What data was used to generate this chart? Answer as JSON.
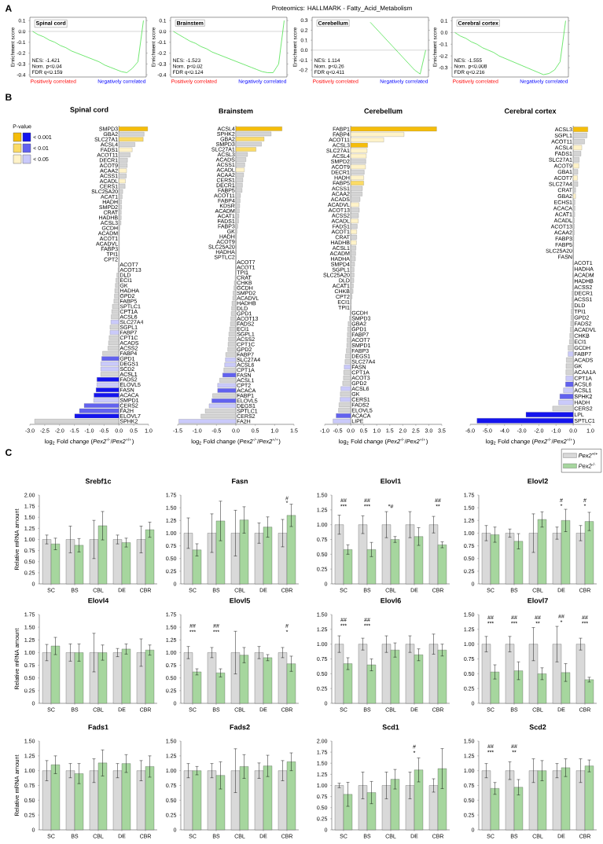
{
  "chart_data": [
    {
      "type": "line",
      "title": "Spinal cord",
      "ylabel": "Enrichment score",
      "categories": [
        null,
        null,
        null,
        null,
        null,
        null,
        null,
        null,
        null,
        null,
        null,
        null,
        null,
        null,
        null,
        null,
        null,
        null,
        null,
        null,
        null
      ],
      "values": [
        0,
        -0.03,
        -0.05,
        -0.08,
        -0.1,
        -0.13,
        -0.15,
        -0.18,
        -0.2,
        -0.22,
        -0.24,
        -0.26,
        -0.28,
        -0.31,
        -0.33,
        -0.35,
        -0.37,
        -0.38,
        -0.34,
        -0.28,
        0.1
      ],
      "color": "#33dd33",
      "ylim": [
        -0.42,
        0.13
      ],
      "yticks": [
        -0.4,
        -0.3,
        -0.2,
        -0.1,
        {
          "value": 0,
          "label": "0.0"
        },
        0.1
      ],
      "tick_labels": "y",
      "ref_lines": [
        {
          "axis": "y",
          "value": 0,
          "color": "#999999"
        }
      ],
      "annotations": [
        "A",
        "Proteomics: HALLMARK - Fatty_Acid_Metabolism",
        "NES: -1.421",
        "Nom. p<0.04",
        "FDR q<0.159",
        "Positively correlated",
        "Negatively correlated"
      ]
    },
    {
      "type": "line",
      "title": "Brainstem",
      "ylabel": "Enrichment score",
      "categories": [
        null,
        null,
        null,
        null,
        null,
        null,
        null,
        null,
        null,
        null,
        null,
        null,
        null,
        null,
        null,
        null,
        null,
        null,
        null,
        null,
        null
      ],
      "values": [
        0,
        -0.03,
        -0.06,
        -0.09,
        -0.11,
        -0.14,
        -0.16,
        -0.19,
        -0.21,
        -0.23,
        -0.25,
        -0.27,
        -0.29,
        -0.31,
        -0.33,
        -0.35,
        -0.37,
        -0.38,
        -0.38,
        -0.3,
        0.1
      ],
      "color": "#33dd33",
      "ylim": [
        -0.42,
        0.13
      ],
      "yticks": [
        -0.4,
        -0.3,
        -0.2,
        -0.1,
        {
          "value": 0,
          "label": "0.0"
        },
        0.1
      ],
      "tick_labels": "y",
      "ref_lines": [
        {
          "axis": "y",
          "value": 0,
          "color": "#999999"
        }
      ],
      "annotations": [
        "NES: -1.523",
        "Nom. p<0.02",
        "FDR q<0.124",
        "Positively correlated",
        "Negatively correlated"
      ]
    },
    {
      "type": "line",
      "title": "Cerebellum",
      "ylabel": "Enrichment score",
      "categories": [
        null,
        null,
        null,
        null,
        null,
        null,
        null,
        null,
        null,
        null,
        null,
        null,
        null,
        null,
        null,
        null,
        null,
        null,
        null,
        null,
        null
      ],
      "values": [
        null,
        null,
        null,
        null,
        null,
        null,
        null,
        null,
        null,
        null,
        0.28,
        0.22,
        0.16,
        0.1,
        0.04,
        -0.02,
        -0.08,
        -0.14,
        -0.2,
        -0.24,
        0.0
      ],
      "color": "#33dd33",
      "ylim": [
        -0.27,
        0.33
      ],
      "yticks": [
        -0.2,
        -0.1,
        {
          "value": 0,
          "label": "0.0"
        },
        0.1,
        0.2,
        0.3
      ],
      "tick_labels": "y",
      "ref_lines": [
        {
          "axis": "y",
          "value": 0,
          "color": "#999999"
        }
      ],
      "annotations": [
        "NES: 1.114",
        "Nom. p<0.26",
        "FDR q<0.411",
        "Positively correlated",
        "Negatively correlated"
      ]
    },
    {
      "type": "line",
      "title": "Cerebral cortex",
      "ylabel": "Enrichment score",
      "categories": [
        null,
        null,
        null,
        null,
        null,
        null,
        null,
        null,
        null,
        null,
        null,
        null,
        null,
        null,
        null,
        null,
        null,
        null,
        null,
        null,
        null
      ],
      "values": [
        0,
        -0.03,
        -0.05,
        -0.08,
        -0.1,
        -0.13,
        -0.15,
        -0.17,
        -0.2,
        -0.22,
        -0.24,
        -0.26,
        -0.28,
        -0.3,
        -0.32,
        -0.34,
        -0.36,
        -0.35,
        -0.32,
        -0.25,
        0.1
      ],
      "color": "#33dd33",
      "ylim": [
        -0.38,
        0.13
      ],
      "yticks": [
        -0.3,
        -0.2,
        -0.1,
        {
          "value": 0,
          "label": "0.0"
        },
        0.1
      ],
      "tick_labels": "y",
      "ref_lines": [
        {
          "axis": "y",
          "value": 0,
          "color": "#999999"
        }
      ],
      "annotations": [
        "NES: -1.555",
        "Nom. p<0.008",
        "FDR q<0.216",
        "Positively correlated",
        "Negatively correlated"
      ]
    },
    {
      "type": "bar",
      "orientation": "horizontal",
      "title": "Spinal cord",
      "xlabel": "log$_{2}$ Fold change (*Pex2*$^{-/-}$/*Pex2*$^{+/+}$)",
      "legend_title": "P-value",
      "annotations": [
        "B",
        "< 0.001",
        "< 0.01",
        "< 0.05"
      ],
      "categories": [
        "SMPD3",
        "GBA2",
        "SLC27A1",
        "ACSL4",
        "FADS1",
        "ACOT11",
        "DECR1",
        "ACOT9",
        "ACAA2",
        "ACSS1",
        "ACADL",
        "CERS1",
        "SLC25A20",
        "ACAT1",
        "HADH",
        "SMPD2",
        "CRAT",
        "HADHB",
        "ACSL3",
        "GCDH",
        "ACADM",
        "ACOT1",
        "ACADVL",
        "FABP3",
        "TPI1",
        "CPT2",
        "ACOT7",
        "ACOT13",
        "DLD",
        "ECI1",
        "GK",
        "HADHA",
        "GPD2",
        "FABP5",
        "SPTLC1",
        "CPT1A",
        "ACSL6",
        "SLC27A4",
        "SGPL1",
        "FABP7",
        "CPT1C",
        "ACADS",
        "ACSS2",
        "FABP4",
        "GPD1",
        "DEGS1",
        "SCD2",
        "ACSL1",
        "FADS2",
        "ELOVL5",
        "FASN",
        "ACACA",
        "SMPD1",
        "CERS2",
        "FA2H",
        "ELOVL7",
        "SPHK2"
      ],
      "values": [
        0.97,
        0.85,
        0.82,
        0.54,
        0.45,
        0.38,
        0.29,
        0.28,
        0.26,
        0.25,
        0.22,
        0.21,
        0.13,
        0.11,
        0.09,
        0.09,
        0.08,
        0.08,
        0.07,
        0.03,
        0.02,
        0.02,
        0.02,
        0.02,
        0.01,
        0.01,
        -0.01,
        -0.03,
        -0.07,
        -0.1,
        -0.12,
        -0.14,
        -0.15,
        -0.17,
        -0.22,
        -0.24,
        -0.26,
        -0.27,
        -0.3,
        -0.3,
        -0.33,
        -0.35,
        -0.37,
        -0.55,
        -0.58,
        -0.61,
        -0.61,
        -0.61,
        -0.74,
        -0.74,
        -0.77,
        -0.84,
        -0.85,
        -1.17,
        -1.33,
        -1.49,
        -2.84
      ],
      "colors": [
        "#f5bd0a",
        "#d4d4d4",
        "#fbdb66",
        "#d4d4d4",
        "#fff3c9",
        "#d4d4d4",
        "#d4d4d4",
        "#d4d4d4",
        "#fff3c9",
        "#d4d4d4",
        "#fff3c9",
        "#d4d4d4",
        "#d4d4d4",
        "#d4d4d4",
        "#d4d4d4",
        "#d4d4d4",
        "#d4d4d4",
        "#d4d4d4",
        "#d4d4d4",
        "#d4d4d4",
        "#d4d4d4",
        "#d4d4d4",
        "#d4d4d4",
        "#d4d4d4",
        "#d4d4d4",
        "#d4d4d4",
        "#d4d4d4",
        "#d4d4d4",
        "#d4d4d4",
        "#d4d4d4",
        "#d4d4d4",
        "#d4d4d4",
        "#d4d4d4",
        "#d4d4d4",
        "#d4d4d4",
        "#d4d4d4",
        "#d4d4d4",
        "#cacafa",
        "#d4d4d4",
        "#cacafa",
        "#d4d4d4",
        "#d4d4d4",
        "#d4d4d4",
        "#d4d4d4",
        "#6262ef",
        "#cacafa",
        "#cacafa",
        "#d4d4d4",
        "#1414ee",
        "#cacafa",
        "#1414ee",
        "#1414ee",
        "#cacafa",
        "#6262ef",
        "#6262ef",
        "#1414ee",
        "#d4d4d4"
      ],
      "xlim": [
        -3,
        1
      ],
      "xticks": [
        {
          "value": -3,
          "label": "-3.0"
        },
        -2.5,
        {
          "value": -2,
          "label": "-2.0"
        },
        -1.5,
        {
          "value": -1,
          "label": "-1.0"
        },
        -0.5,
        {
          "value": 0,
          "label": "0.0"
        },
        0.5,
        {
          "value": 1,
          "label": "1.0"
        }
      ]
    },
    {
      "type": "bar",
      "orientation": "horizontal",
      "title": "Brainstem",
      "xlabel": "log$_{2}$ Fold change (*Pex2*$^{-/-}$/*Pex2*$^{+/+}$)",
      "categories": [
        "ACSL4",
        "SPHK2",
        "GBA2",
        "SMPD3",
        "SLC27A1",
        "ACSL3",
        "ACADS",
        "ACSS1",
        "ACADL",
        "ACAA2",
        "CERS1",
        "DECR1",
        "FABP5",
        "ACOT11",
        "FABP4",
        "KDSR",
        "ACADM",
        "ACAT1",
        "FADS1",
        "FABP3",
        "GK",
        "HADH",
        "ACOT9",
        "SLC25A20",
        "HADHA",
        "SPTLC2",
        "ACOT7",
        "ACOT1",
        "TPI1",
        "CRAT",
        "CHKB",
        "GCDH",
        "SMPD2",
        "ACADVL",
        "HADHB",
        "DLD",
        "GPD1",
        "ACOT13",
        "FADS2",
        "ECI1",
        "SGPL1",
        "ACSS2",
        "CPT1C",
        "GPD2",
        "FABP7",
        "SLC27A4",
        "ACSL6",
        "CPT1A",
        "FASN",
        "ACSL1",
        "CPT2",
        "ACACA",
        "FABP1",
        "ELOVL5",
        "DEGS1",
        "SPTLC1",
        "CERS2",
        "FA2H"
      ],
      "values": [
        1.19,
        0.91,
        0.73,
        0.66,
        0.52,
        0.3,
        0.26,
        0.23,
        0.22,
        0.2,
        0.18,
        0.17,
        0.16,
        0.12,
        0.11,
        0.1,
        0.09,
        0.08,
        0.07,
        0.05,
        0.03,
        0.02,
        0.01,
        0.01,
        0.01,
        0.01,
        -0.01,
        -0.01,
        -0.01,
        -0.02,
        -0.04,
        -0.05,
        -0.07,
        -0.08,
        -0.1,
        -0.11,
        -0.12,
        -0.13,
        -0.14,
        -0.16,
        -0.18,
        -0.19,
        -0.2,
        -0.21,
        -0.26,
        -0.27,
        -0.29,
        -0.31,
        -0.34,
        -0.42,
        -0.47,
        -0.47,
        -0.6,
        -0.62,
        -0.69,
        -0.79,
        -0.9,
        -1.47
      ],
      "colors": [
        "#f5bd0a",
        "#d4d4d4",
        "#fbdb66",
        "#d4d4d4",
        "#fbdb66",
        "#d4d4d4",
        "#d4d4d4",
        "#d4d4d4",
        "#fff3c9",
        "#d4d4d4",
        "#d4d4d4",
        "#d4d4d4",
        "#d4d4d4",
        "#d4d4d4",
        "#d4d4d4",
        "#d4d4d4",
        "#d4d4d4",
        "#d4d4d4",
        "#d4d4d4",
        "#d4d4d4",
        "#d4d4d4",
        "#d4d4d4",
        "#d4d4d4",
        "#d4d4d4",
        "#d4d4d4",
        "#d4d4d4",
        "#d4d4d4",
        "#d4d4d4",
        "#d4d4d4",
        "#d4d4d4",
        "#d4d4d4",
        "#d4d4d4",
        "#d4d4d4",
        "#d4d4d4",
        "#d4d4d4",
        "#d4d4d4",
        "#d4d4d4",
        "#d4d4d4",
        "#d4d4d4",
        "#d4d4d4",
        "#d4d4d4",
        "#d4d4d4",
        "#d4d4d4",
        "#d4d4d4",
        "#d4d4d4",
        "#cacafa",
        "#cacafa",
        "#d4d4d4",
        "#6262ef",
        "#d4d4d4",
        "#cacafa",
        "#6262ef",
        "#d4d4d4",
        "#6262ef",
        "#cacafa",
        "#d4d4d4",
        "#d4d4d4",
        "#cacafa"
      ],
      "xlim": [
        -1.5,
        1.5
      ],
      "xticks": [
        -1.5,
        {
          "value": -1,
          "label": "-1.0"
        },
        -0.5,
        {
          "value": 0,
          "label": "0.0"
        },
        0.5,
        {
          "value": 1,
          "label": "1.0"
        },
        1.5
      ]
    },
    {
      "type": "bar",
      "orientation": "horizontal",
      "title": "Cerebellum",
      "xlabel": "log$_{2}$ Fold change (*Pex2*$^{-/-}$/*Pex2*$^{+/+}$)",
      "categories": [
        "FABP1",
        "FABP4",
        "ACOT11",
        "ACSL3",
        "SLC27A1",
        "ACSL4",
        "SMPD2",
        "ACOT9",
        "DECR1",
        "HADH",
        "FABP5",
        "ACSS1",
        "ACAA2",
        "ACADS",
        "ACADVL",
        "ACOT13",
        "ACSS2",
        "ACADL",
        "FADS1",
        "ACOT1",
        "CRAT",
        "HADHB",
        "ACSL1",
        "ACADM",
        "HADHA",
        "SMPD4",
        "SGPL1",
        "SLC25A20",
        "DLD",
        "ACAT1",
        "CHKB",
        "CPT2",
        "ECI1",
        "TPI1",
        "GCDH",
        "SMPD3",
        "GBA2",
        "GPD1",
        "FABP7",
        "ACOT7",
        "SMPD1",
        "FABP3",
        "DEGS1",
        "SLC27A4",
        "FASN",
        "CPT1A",
        "ACOT3",
        "GPD2",
        "ACSL6",
        "GK",
        "CERS1",
        "FADS2",
        "ELOVL5",
        "ACACA",
        "LIPE"
      ],
      "values": [
        3.3,
        2.05,
        1.27,
        0.65,
        0.63,
        0.6,
        0.58,
        0.57,
        0.52,
        0.5,
        0.5,
        0.45,
        0.44,
        0.36,
        0.32,
        0.33,
        0.3,
        0.29,
        0.25,
        0.23,
        0.23,
        0.22,
        0.2,
        0.19,
        0.18,
        0.15,
        0.13,
        0.13,
        0.12,
        0.1,
        0.09,
        0.05,
        0.02,
        0.01,
        -0.02,
        -0.05,
        -0.1,
        -0.12,
        -0.13,
        -0.14,
        -0.15,
        -0.17,
        -0.2,
        -0.22,
        -0.25,
        -0.27,
        -0.28,
        -0.31,
        -0.38,
        -0.4,
        -0.41,
        -0.45,
        -0.47,
        -0.56,
        -0.68
      ],
      "colors": [
        "#f5bd0a",
        "#fff3c9",
        "#fff3c9",
        "#f5bd0a",
        "#fff3c9",
        "#fff3c9",
        "#d4d4d4",
        "#fff3c9",
        "#d4d4d4",
        "#fff3c9",
        "#fbdb66",
        "#d4d4d4",
        "#d4d4d4",
        "#d4d4d4",
        "#fff3c9",
        "#d4d4d4",
        "#d4d4d4",
        "#fff3c9",
        "#d4d4d4",
        "#fff3c9",
        "#d4d4d4",
        "#fff3c9",
        "#d4d4d4",
        "#d4d4d4",
        "#d4d4d4",
        "#d4d4d4",
        "#d4d4d4",
        "#d4d4d4",
        "#d4d4d4",
        "#d4d4d4",
        "#d4d4d4",
        "#d4d4d4",
        "#d4d4d4",
        "#d4d4d4",
        "#d4d4d4",
        "#d4d4d4",
        "#d4d4d4",
        "#d4d4d4",
        "#d4d4d4",
        "#d4d4d4",
        "#d4d4d4",
        "#d4d4d4",
        "#d4d4d4",
        "#d4d4d4",
        "#cacafa",
        "#d4d4d4",
        "#d4d4d4",
        "#d4d4d4",
        "#cacafa",
        "#d4d4d4",
        "#cacafa",
        "#d4d4d4",
        "#d4d4d4",
        "#6262ef",
        "#cacafa"
      ],
      "xlim": [
        -1,
        3.5
      ],
      "xticks": [
        {
          "value": -1,
          "label": "-1.0"
        },
        -0.5,
        {
          "value": 0,
          "label": "0.0"
        },
        0.5,
        {
          "value": 1,
          "label": "1.0"
        },
        1.5,
        {
          "value": 2,
          "label": "2.0"
        },
        2.5,
        {
          "value": 3,
          "label": "3.0"
        },
        3.5
      ]
    },
    {
      "type": "bar",
      "orientation": "horizontal",
      "title": "Cerebral cortex",
      "xlabel": "log$_{2}$ Fold change (*Pex2*$^{-/-}$/*Pex2*$^{+/+}$)",
      "categories": [
        "ACSL3",
        "SGPL1",
        "ACOT11",
        "ACSL4",
        "FADS1",
        "SLC27A1",
        "ACOT9",
        "GBA1",
        "ACOT7",
        "SLC27A4",
        "CRAT",
        "GBA2",
        "ECHS1",
        "ACACA",
        "ACAT1",
        "ACADL",
        "ACOT13",
        "ACAA2",
        "FABP3",
        "FABP5",
        "SLC25A20",
        "FASN",
        "ACOT1",
        "HADHA",
        "ACADM",
        "HADHB",
        "ACSS2",
        "DECR1",
        "ACSS1",
        "DLD",
        "TPI1",
        "GPD2",
        "FADS2",
        "ACADVL",
        "CHKB",
        "ECI1",
        "GCDH",
        "FABP7",
        "ACADS",
        "GK",
        "ACAA1A",
        "CPT1A",
        "ACSL6",
        "ACSL1",
        "SPHK2",
        "HADH",
        "CERS2",
        "LPL",
        "SPTLC1"
      ],
      "values": [
        0.85,
        0.8,
        0.66,
        0.5,
        0.45,
        0.35,
        0.33,
        0.27,
        0.25,
        0.27,
        0.14,
        0.14,
        0.1,
        0.1,
        0.09,
        0.07,
        0.07,
        0.06,
        0.04,
        0.03,
        0.02,
        0.01,
        -0.01,
        -0.02,
        -0.03,
        -0.04,
        -0.05,
        -0.07,
        -0.08,
        -0.1,
        -0.12,
        -0.13,
        -0.15,
        -0.17,
        -0.2,
        -0.22,
        -0.3,
        -0.3,
        -0.4,
        -0.42,
        -0.43,
        -0.43,
        -0.45,
        -0.57,
        -0.78,
        -0.85,
        -1.2,
        -2.75,
        -5.6
      ],
      "colors": [
        "#f5bd0a",
        "#d4d4d4",
        "#d4d4d4",
        "#fff3c9",
        "#d4d4d4",
        "#d4d4d4",
        "#fff3c9",
        "#d4d4d4",
        "#fff3c9",
        "#d4d4d4",
        "#d4d4d4",
        "#fff3c9",
        "#d4d4d4",
        "#d4d4d4",
        "#d4d4d4",
        "#d4d4d4",
        "#d4d4d4",
        "#d4d4d4",
        "#d4d4d4",
        "#d4d4d4",
        "#d4d4d4",
        "#d4d4d4",
        "#d4d4d4",
        "#d4d4d4",
        "#d4d4d4",
        "#d4d4d4",
        "#d4d4d4",
        "#d4d4d4",
        "#d4d4d4",
        "#d4d4d4",
        "#d4d4d4",
        "#d4d4d4",
        "#d4d4d4",
        "#d4d4d4",
        "#d4d4d4",
        "#d4d4d4",
        "#d4d4d4",
        "#cacafa",
        "#d4d4d4",
        "#d4d4d4",
        "#d4d4d4",
        "#cacafa",
        "#6262ef",
        "#cacafa",
        "#6262ef",
        "#cacafa",
        "#d4d4d4",
        "#1414ee",
        "#1414ee"
      ],
      "xlim": [
        -6,
        1
      ],
      "xticks": [
        {
          "value": -6,
          "label": "-6.0"
        },
        {
          "value": -5,
          "label": "-5.0"
        },
        {
          "value": -4,
          "label": "-4.0"
        },
        {
          "value": -3,
          "label": "-3.0"
        },
        {
          "value": -2,
          "label": "-2.0"
        },
        {
          "value": -1,
          "label": "-1.0"
        },
        {
          "value": 0,
          "label": "0.0"
        },
        {
          "value": 1,
          "label": "1.0"
        }
      ]
    },
    {
      "type": "bar",
      "title": "Srebf1c",
      "ylabel": "Relative mRNA amount",
      "categories": [
        "SC",
        "BS",
        "CBL",
        "DE",
        "CBR"
      ],
      "annotations": [
        "C"
      ],
      "series": [
        {
          "color": "#d9d9d9",
          "values": [
            1,
            1,
            1,
            1,
            1
          ],
          "errors": [
            0.1,
            0.3,
            0.43,
            0.1,
            0.3
          ]
        },
        {
          "color": "#a6d69e",
          "values": [
            0.9,
            0.87,
            1.31,
            0.93,
            1.22
          ],
          "errors": [
            0.13,
            0.15,
            0.32,
            0.1,
            0.17
          ]
        }
      ],
      "ylim": [
        0,
        2
      ],
      "yticks": [
        0,
        0.25,
        {
          "value": 0.5,
          "label": "0.50"
        },
        0.75,
        {
          "value": 1,
          "label": "1.00"
        },
        1.25,
        {
          "value": 1.5,
          "label": "1.50"
        },
        1.75,
        {
          "value": 2,
          "label": "2.00"
        }
      ]
    },
    {
      "type": "bar",
      "title": "Fasn",
      "categories": [
        "SC",
        "BS",
        "CBL",
        "DE",
        "CBR"
      ],
      "annotations": [
        "*",
        "#"
      ],
      "series": [
        {
          "color": "#d9d9d9",
          "values": [
            1,
            1,
            1,
            1,
            1
          ],
          "errors": [
            0.3,
            0.38,
            0.45,
            0.2,
            0.27
          ]
        },
        {
          "color": "#a6d69e",
          "values": [
            0.67,
            1.24,
            1.26,
            1.12,
            1.35
          ],
          "errors": [
            0.12,
            0.39,
            0.26,
            0.2,
            0.22
          ]
        }
      ],
      "ylim": [
        0,
        1.75
      ],
      "yticks": [
        0,
        0.25,
        {
          "value": 0.5,
          "label": "0.50"
        },
        0.75,
        {
          "value": 1,
          "label": "1.00"
        },
        1.25,
        {
          "value": 1.5,
          "label": "1.50"
        },
        1.75
      ]
    },
    {
      "type": "bar",
      "title": "Elovl1",
      "categories": [
        "SC",
        "BS",
        "CBL",
        "DE",
        "CBR"
      ],
      "annotations": [
        "***",
        "##",
        "***",
        "##",
        "*#",
        "**",
        "##"
      ],
      "series": [
        {
          "color": "#d9d9d9",
          "values": [
            1,
            1,
            1,
            1,
            1
          ],
          "errors": [
            0.16,
            0.15,
            0.22,
            0.22,
            0.14
          ]
        },
        {
          "color": "#a6d69e",
          "values": [
            0.58,
            0.58,
            0.75,
            0.8,
            0.66
          ],
          "errors": [
            0.08,
            0.12,
            0.05,
            0.15,
            0.05
          ]
        }
      ],
      "ylim": [
        0,
        1.5
      ],
      "yticks": [
        0,
        0.25,
        {
          "value": 0.5,
          "label": "0.50"
        },
        0.75,
        {
          "value": 1,
          "label": "1.00"
        },
        1.25,
        {
          "value": 1.5,
          "label": "1.50"
        }
      ]
    },
    {
      "type": "bar",
      "title": "Elovl2",
      "categories": [
        "SC",
        "BS",
        "CBL",
        "DE",
        "CBR"
      ],
      "legend": "top right",
      "annotations": [
        "*",
        "#",
        "*",
        "#"
      ],
      "series": [
        {
          "name": "*Pex2*$^{+/+}$",
          "color": "#d9d9d9",
          "values": [
            1,
            1,
            1,
            1,
            1
          ],
          "errors": [
            0.15,
            0.08,
            0.38,
            0.12,
            0.15
          ]
        },
        {
          "name": "*Pex2*$^{-/-}$",
          "color": "#a6d69e",
          "values": [
            0.97,
            0.84,
            1.27,
            1.25,
            1.23
          ],
          "errors": [
            0.15,
            0.15,
            0.15,
            0.22,
            0.18
          ]
        }
      ],
      "ylim": [
        0,
        1.75
      ],
      "yticks": [
        0,
        0.25,
        {
          "value": 0.5,
          "label": "0.50"
        },
        0.75,
        {
          "value": 1,
          "label": "1.00"
        },
        1.25,
        {
          "value": 1.5,
          "label": "1.50"
        },
        1.75
      ]
    },
    {
      "type": "bar",
      "title": "Elovl4",
      "ylabel": "Relative mRNA amount",
      "categories": [
        "SC",
        "BS",
        "CBL",
        "DE",
        "CBR"
      ],
      "series": [
        {
          "color": "#d9d9d9",
          "values": [
            1,
            1,
            1,
            1,
            1
          ],
          "errors": [
            0.16,
            0.17,
            0.38,
            0.08,
            0.27
          ]
        },
        {
          "color": "#a6d69e",
          "values": [
            1.13,
            1.0,
            1.0,
            1.07,
            1.05
          ],
          "errors": [
            0.17,
            0.17,
            0.15,
            0.1,
            0.1
          ]
        }
      ],
      "ylim": [
        0,
        1.75
      ],
      "yticks": [
        0,
        0.25,
        {
          "value": 0.5,
          "label": "0.50"
        },
        0.75,
        {
          "value": 1,
          "label": "1.00"
        },
        1.25,
        {
          "value": 1.5,
          "label": "1.50"
        },
        1.75
      ]
    },
    {
      "type": "bar",
      "title": "Elovl5",
      "categories": [
        "SC",
        "BS",
        "CBL",
        "DE",
        "CBR"
      ],
      "annotations": [
        "***",
        "##",
        "***",
        "##",
        "*",
        "#"
      ],
      "series": [
        {
          "color": "#d9d9d9",
          "values": [
            1,
            1,
            1,
            1,
            1
          ],
          "errors": [
            0.12,
            0.1,
            0.42,
            0.12,
            0.1
          ]
        },
        {
          "color": "#a6d69e",
          "values": [
            0.62,
            0.6,
            0.95,
            0.9,
            0.78
          ],
          "errors": [
            0.06,
            0.08,
            0.15,
            0.06,
            0.15
          ]
        }
      ],
      "ylim": [
        0,
        1.75
      ],
      "yticks": [
        0,
        0.25,
        {
          "value": 0.5,
          "label": "0.50"
        },
        0.75,
        {
          "value": 1,
          "label": "1.00"
        },
        1.25,
        {
          "value": 1.5,
          "label": "1.50"
        },
        1.75
      ]
    },
    {
      "type": "bar",
      "title": "Elovl6",
      "categories": [
        "SC",
        "BS",
        "CBL",
        "DE",
        "CBR"
      ],
      "annotations": [
        "***",
        "##",
        "***",
        "##"
      ],
      "series": [
        {
          "color": "#d9d9d9",
          "values": [
            1,
            1,
            1,
            1,
            1
          ],
          "errors": [
            0.14,
            0.1,
            0.14,
            0.14,
            0.17
          ]
        },
        {
          "color": "#a6d69e",
          "values": [
            0.67,
            0.65,
            0.9,
            0.82,
            0.9
          ],
          "errors": [
            0.1,
            0.1,
            0.12,
            0.1,
            0.1
          ]
        }
      ],
      "ylim": [
        0,
        1.5
      ],
      "yticks": [
        0,
        0.25,
        {
          "value": 0.5,
          "label": "0.50"
        },
        0.75,
        {
          "value": 1,
          "label": "1.00"
        },
        1.25,
        {
          "value": 1.5,
          "label": "1.50"
        }
      ]
    },
    {
      "type": "bar",
      "title": "Elovl7",
      "categories": [
        "SC",
        "BS",
        "CBL",
        "DE",
        "CBR"
      ],
      "annotations": [
        "***",
        "##",
        "***",
        "##",
        "**",
        "##",
        "*",
        "##",
        "***",
        "##"
      ],
      "series": [
        {
          "color": "#d9d9d9",
          "values": [
            1,
            1,
            1,
            1,
            1
          ],
          "errors": [
            0.13,
            0.13,
            0.28,
            0.3,
            0.1
          ]
        },
        {
          "color": "#a6d69e",
          "values": [
            0.53,
            0.55,
            0.5,
            0.52,
            0.4
          ],
          "errors": [
            0.12,
            0.15,
            0.1,
            0.15,
            0.04
          ]
        }
      ],
      "ylim": [
        0,
        1.5
      ],
      "yticks": [
        0,
        0.25,
        {
          "value": 0.5,
          "label": "0.50"
        },
        0.75,
        {
          "value": 1,
          "label": "1.00"
        },
        1.25,
        {
          "value": 1.5,
          "label": "1.50"
        }
      ]
    },
    {
      "type": "bar",
      "title": "Fads1",
      "ylabel": "Relative mRNA amount",
      "categories": [
        "SC",
        "BS",
        "CBL",
        "DE",
        "CBR"
      ],
      "series": [
        {
          "color": "#d9d9d9",
          "values": [
            1,
            1,
            1,
            1,
            1
          ],
          "errors": [
            0.17,
            0.12,
            0.2,
            0.12,
            0.17
          ]
        },
        {
          "color": "#a6d69e",
          "values": [
            1.1,
            0.95,
            1.13,
            1.12,
            1.07
          ],
          "errors": [
            0.15,
            0.17,
            0.22,
            0.15,
            0.18
          ]
        }
      ],
      "ylim": [
        0,
        1.5
      ],
      "yticks": [
        0,
        0.25,
        {
          "value": 0.5,
          "label": "0.50"
        },
        0.75,
        {
          "value": 1,
          "label": "1.00"
        },
        1.25,
        {
          "value": 1.5,
          "label": "1.50"
        }
      ]
    },
    {
      "type": "bar",
      "title": "Fads2",
      "categories": [
        "SC",
        "BS",
        "CBL",
        "DE",
        "CBR"
      ],
      "series": [
        {
          "color": "#d9d9d9",
          "values": [
            1,
            1,
            1,
            1,
            1
          ],
          "errors": [
            0.12,
            0.12,
            0.37,
            0.13,
            0.17
          ]
        },
        {
          "color": "#a6d69e",
          "values": [
            1.0,
            0.92,
            1.07,
            1.08,
            1.15
          ],
          "errors": [
            0.07,
            0.23,
            0.2,
            0.18,
            0.15
          ]
        }
      ],
      "ylim": [
        0,
        1.5
      ],
      "yticks": [
        0,
        0.25,
        {
          "value": 0.5,
          "label": "0.50"
        },
        0.75,
        {
          "value": 1,
          "label": "1.00"
        },
        1.25,
        {
          "value": 1.5,
          "label": "1.50"
        }
      ]
    },
    {
      "type": "bar",
      "title": "Scd1",
      "categories": [
        "SC",
        "BS",
        "CBL",
        "DE",
        "CBR"
      ],
      "annotations": [
        "*",
        "#"
      ],
      "series": [
        {
          "color": "#d9d9d9",
          "values": [
            1,
            1,
            1,
            1,
            1
          ],
          "errors": [
            0.05,
            0.3,
            0.3,
            0.3,
            0.15
          ]
        },
        {
          "color": "#a6d69e",
          "values": [
            0.8,
            0.84,
            1.14,
            1.35,
            1.38
          ],
          "errors": [
            0.27,
            0.25,
            0.22,
            0.27,
            0.45
          ]
        }
      ],
      "ylim": [
        0,
        2
      ],
      "yticks": [
        0,
        0.25,
        {
          "value": 0.5,
          "label": "0.50"
        },
        0.75,
        {
          "value": 1,
          "label": "1.00"
        },
        1.25,
        {
          "value": 1.5,
          "label": "1.50"
        },
        1.75,
        {
          "value": 2,
          "label": "2.00"
        }
      ]
    },
    {
      "type": "bar",
      "title": "Scd2",
      "categories": [
        "SC",
        "BS",
        "CBL",
        "DE",
        "CBR"
      ],
      "annotations": [
        "***",
        "##",
        "**",
        "##"
      ],
      "series": [
        {
          "color": "#d9d9d9",
          "values": [
            1,
            1,
            1,
            1,
            1
          ],
          "errors": [
            0.12,
            0.15,
            0.2,
            0.12,
            0.2
          ]
        },
        {
          "color": "#a6d69e",
          "values": [
            0.7,
            0.72,
            1.0,
            1.05,
            1.08
          ],
          "errors": [
            0.1,
            0.13,
            0.17,
            0.15,
            0.1
          ]
        }
      ],
      "ylim": [
        0,
        1.5
      ],
      "yticks": [
        0,
        0.25,
        {
          "value": 0.5,
          "label": "0.50"
        },
        0.75,
        {
          "value": 1,
          "label": "1.00"
        },
        1.25,
        {
          "value": 1.5,
          "label": "1.50"
        }
      ]
    }
  ]
}
